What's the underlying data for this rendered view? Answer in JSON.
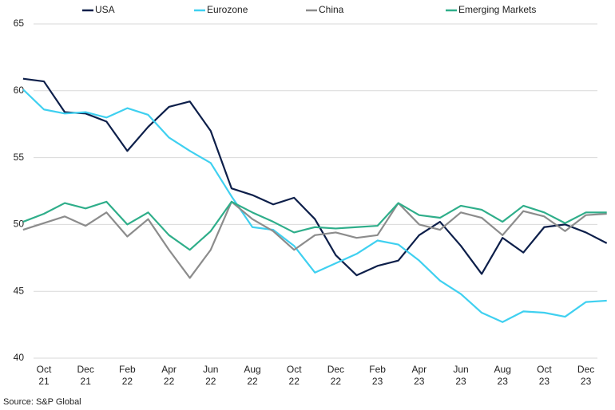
{
  "chart_data": {
    "type": "line",
    "categories": [
      null,
      "Oct 21",
      null,
      "Dec 21",
      null,
      "Feb 22",
      null,
      "Apr 22",
      null,
      "Jun 22",
      null,
      "Aug 22",
      null,
      "Oct 22",
      null,
      "Dec 22",
      null,
      "Feb 23",
      null,
      "Apr 23",
      null,
      "Jun 23",
      null,
      "Aug 23",
      null,
      "Oct 23",
      null,
      "Dec 23",
      null
    ],
    "series": [
      {
        "name": "USA",
        "color": "#0d1f4a",
        "values": [
          60.9,
          60.7,
          58.4,
          58.3,
          57.7,
          55.5,
          57.3,
          58.8,
          59.2,
          57.0,
          52.7,
          52.2,
          51.5,
          52.0,
          50.4,
          47.7,
          46.2,
          46.9,
          47.3,
          49.2,
          50.2,
          48.4,
          46.3,
          49.0,
          47.9,
          49.8,
          50.0,
          49.4,
          48.6
        ]
      },
      {
        "name": "Eurozone",
        "color": "#3fd0f0",
        "values": [
          60.1,
          58.6,
          58.3,
          58.4,
          58.0,
          58.7,
          58.2,
          56.5,
          55.5,
          54.6,
          52.1,
          49.8,
          49.6,
          48.4,
          46.4,
          47.1,
          47.8,
          48.8,
          48.5,
          47.3,
          45.8,
          44.8,
          43.4,
          42.7,
          43.5,
          43.4,
          43.1,
          44.2,
          44.3
        ]
      },
      {
        "name": "China",
        "color": "#8c8c8c",
        "values": [
          49.6,
          50.1,
          50.6,
          49.9,
          50.9,
          49.1,
          50.4,
          48.1,
          46.0,
          48.1,
          51.7,
          50.4,
          49.5,
          48.1,
          49.2,
          49.4,
          49.0,
          49.2,
          51.6,
          50.0,
          49.6,
          50.9,
          50.5,
          49.2,
          51.0,
          50.6,
          49.5,
          50.7,
          50.8
        ]
      },
      {
        "name": "Emerging Markets",
        "color": "#2fae8a",
        "values": [
          50.2,
          50.8,
          51.6,
          51.2,
          51.7,
          50.0,
          50.9,
          49.2,
          48.1,
          49.5,
          51.7,
          50.9,
          50.2,
          49.4,
          49.8,
          49.7,
          49.8,
          49.9,
          51.6,
          50.7,
          50.5,
          51.4,
          51.1,
          50.2,
          51.4,
          50.9,
          50.1,
          50.9,
          50.9
        ]
      }
    ],
    "ylim": [
      40,
      65
    ],
    "yticks": [
      40,
      45,
      50,
      55,
      60,
      65
    ],
    "grid": true,
    "source": "Source: S&P Global"
  }
}
